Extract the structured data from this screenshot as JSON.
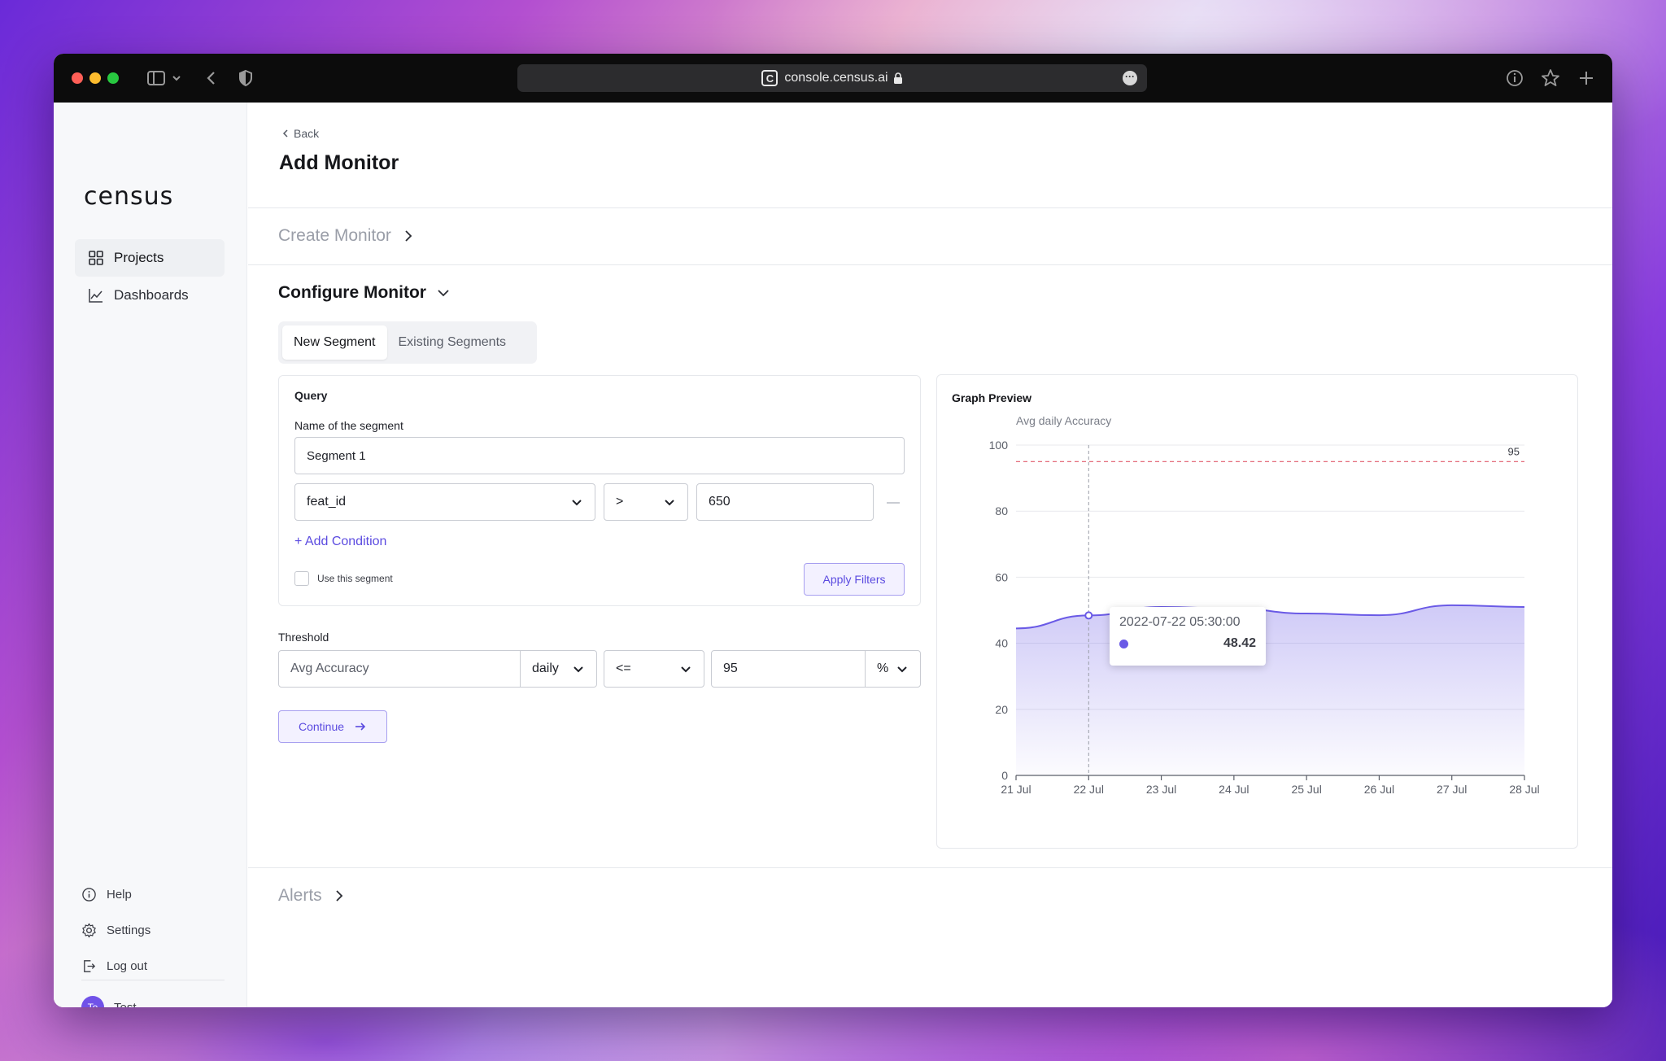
{
  "browser": {
    "url": "console.census.ai",
    "favicon_letter": "C"
  },
  "sidebar": {
    "logo": "census",
    "nav": [
      {
        "label": "Projects",
        "icon": "grid-icon",
        "active": true
      },
      {
        "label": "Dashboards",
        "icon": "line-chart-icon",
        "active": false
      }
    ],
    "footer": [
      {
        "label": "Help",
        "icon": "info-icon"
      },
      {
        "label": "Settings",
        "icon": "gear-icon"
      },
      {
        "label": "Log out",
        "icon": "logout-icon"
      }
    ],
    "user": {
      "initials": "Te",
      "name": "Test"
    }
  },
  "header": {
    "back_label": "Back",
    "title": "Add Monitor"
  },
  "sections": {
    "create": "Create Monitor",
    "configure": "Configure Monitor",
    "alerts": "Alerts"
  },
  "tabs": [
    {
      "label": "New Segment",
      "active": true
    },
    {
      "label": "Existing Segments",
      "active": false
    }
  ],
  "query": {
    "title": "Query",
    "name_label": "Name of the segment",
    "name_value": "Segment 1",
    "condition": {
      "field": "feat_id",
      "operator": ">",
      "value": "650"
    },
    "add_condition": "+ Add Condition",
    "use_segment_label": "Use this segment",
    "apply_label": "Apply Filters"
  },
  "threshold": {
    "label": "Threshold",
    "metric": "Avg Accuracy",
    "period": "daily",
    "operator": "<=",
    "value": "95",
    "unit": "%"
  },
  "continue_label": "Continue",
  "graph": {
    "title": "Graph Preview",
    "tooltip": {
      "date": "2022-07-22 05:30:00",
      "value": "48.42"
    }
  },
  "colors": {
    "accent": "#5b4be0",
    "series": "#6a5ae6",
    "threshold_line": "#e05a6a"
  },
  "chart_data": {
    "type": "area",
    "title": "Avg daily Accuracy",
    "x": [
      "21 Jul",
      "22 Jul",
      "23 Jul",
      "24 Jul",
      "25 Jul",
      "26 Jul",
      "27 Jul",
      "28 Jul"
    ],
    "x_ticks": [
      "21 Jul",
      "22 Jul",
      "23 Jul",
      "24 Jul",
      "25 Jul",
      "26 Jul",
      "27 Jul",
      "28 Jul"
    ],
    "series": [
      {
        "values": [
          44.5,
          48.42,
          51.0,
          50.5,
          49.0,
          48.5,
          51.5,
          51.0
        ]
      }
    ],
    "ylim": [
      0,
      100
    ],
    "y_ticks": [
      0,
      20,
      40,
      60,
      80,
      100
    ],
    "threshold": {
      "value": 95,
      "label": "95"
    },
    "grid": true
  }
}
